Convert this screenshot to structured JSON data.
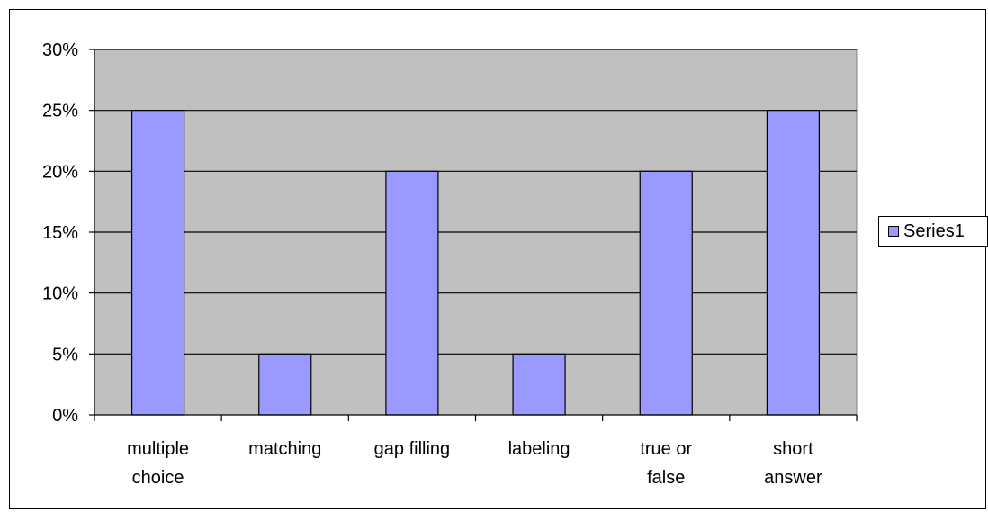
{
  "chart_data": {
    "type": "bar",
    "categories": [
      "multiple choice",
      "matching",
      "gap filling",
      "labeling",
      "true or false",
      "short answer"
    ],
    "category_label_lines": [
      [
        "multiple",
        "choice"
      ],
      [
        "matching"
      ],
      [
        "gap filling"
      ],
      [
        "labeling"
      ],
      [
        "true or",
        "false"
      ],
      [
        "short",
        "answer"
      ]
    ],
    "series": [
      {
        "name": "Series1",
        "values": [
          25,
          5,
          20,
          5,
          20,
          25
        ]
      }
    ],
    "ylim": [
      0,
      30
    ],
    "yticks": [
      0,
      5,
      10,
      15,
      20,
      25,
      30
    ],
    "ytick_labels": [
      "0%",
      "5%",
      "10%",
      "15%",
      "20%",
      "25%",
      "30%"
    ],
    "grid": true,
    "legend_position": "right",
    "colors": {
      "bar": "#9999ff",
      "plot_bg": "#c0c0c0",
      "grid": "#000000"
    }
  }
}
